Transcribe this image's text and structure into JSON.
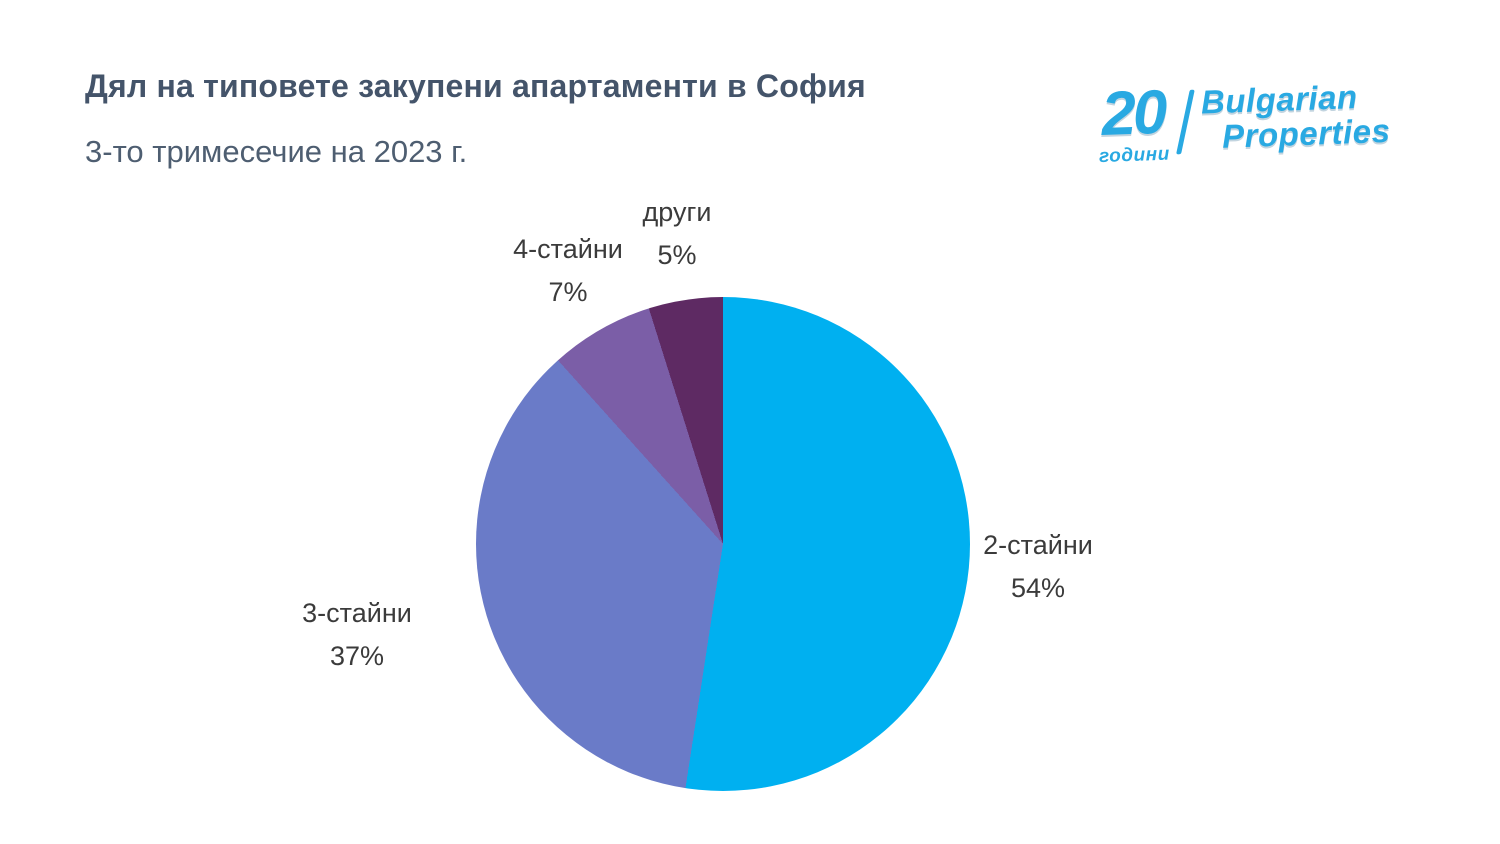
{
  "header": {
    "title": "Дял на типовете закупени апартаменти в София",
    "subtitle": "3-то тримесечие на 2023 г."
  },
  "logo": {
    "years_number": "20",
    "years_label": "години",
    "brand_line1": "Bulgarian",
    "brand_line2": "Properties",
    "color": "#29A9E2"
  },
  "chart_data": {
    "type": "pie",
    "title": "Дял на типовете закупени апартаменти в София",
    "subtitle": "3-то тримесечие на 2023 г.",
    "start_angle_deg": 0,
    "direction": "clockwise",
    "legend": "none",
    "labels_outside": true,
    "slices": [
      {
        "label": "2-стайни",
        "value": 54,
        "percent_label": "54%",
        "color": "#00B0F0"
      },
      {
        "label": "3-стайни",
        "value": 37,
        "percent_label": "37%",
        "color": "#6A7BC8"
      },
      {
        "label": "4-стайни",
        "value": 7,
        "percent_label": "7%",
        "color": "#7B5EA7"
      },
      {
        "label": "други",
        "value": 5,
        "percent_label": "5%",
        "color": "#5E2A63"
      }
    ]
  }
}
